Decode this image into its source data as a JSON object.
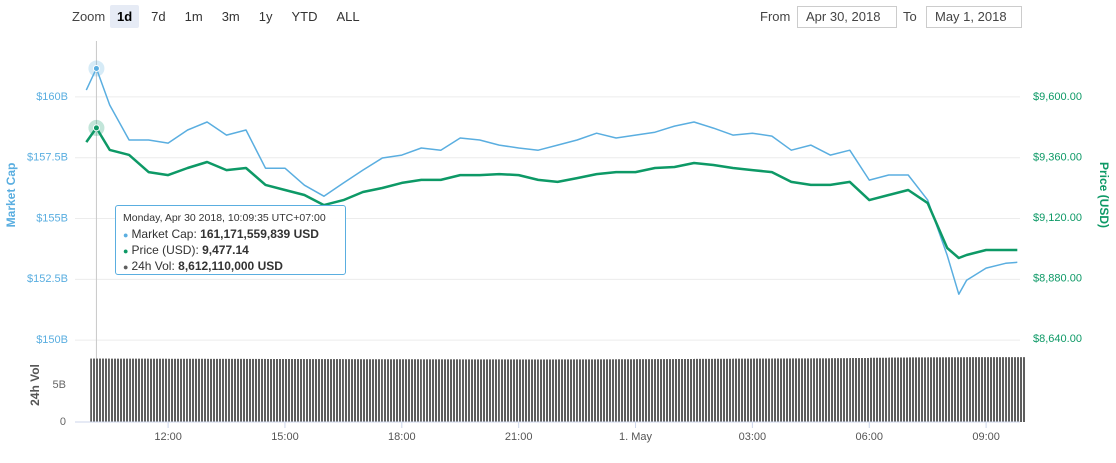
{
  "toolbar": {
    "zoom_label": "Zoom",
    "buttons": [
      "1d",
      "7d",
      "1m",
      "3m",
      "1y",
      "YTD",
      "ALL"
    ],
    "selected": "1d",
    "from_label": "From",
    "from": "Apr 30, 2018",
    "to_label": "To",
    "to": "May 1, 2018"
  },
  "tooltip": {
    "title": "Monday, Apr 30 2018, 10:09:35 UTC+07:00",
    "rows": [
      {
        "label": "Market Cap:",
        "value": "161,171,559,839 USD"
      },
      {
        "label": "Price (USD):",
        "value": "9,477.14"
      },
      {
        "label": "24h Vol:",
        "value": "8,612,110,000 USD"
      }
    ]
  },
  "chart_data": [
    {
      "type": "line",
      "ylabel": "Market Cap",
      "y2label": "Price (USD)",
      "x": [
        9.9,
        10.16,
        10.5,
        11,
        11.5,
        12,
        12.5,
        13,
        13.5,
        14,
        14.5,
        15,
        15.5,
        16,
        16.5,
        17,
        17.5,
        18,
        18.5,
        19,
        19.5,
        20,
        20.5,
        21,
        21.5,
        22,
        22.5,
        23,
        23.5,
        24,
        24.5,
        25,
        25.5,
        26,
        26.5,
        27,
        27.5,
        28,
        28.5,
        29,
        29.5,
        30,
        30.5,
        31,
        31.5,
        32,
        32.3,
        32.5,
        33,
        33.5,
        33.8
      ],
      "series": [
        {
          "name": "Market Cap",
          "color": "#5aaee0",
          "axis": "y",
          "values": [
            160280000000.0,
            161171559839,
            159670000000.0,
            158230000000.0,
            158230000000.0,
            158100000000.0,
            158640000000.0,
            158970000000.0,
            158430000000.0,
            158640000000.0,
            157070000000.0,
            157070000000.0,
            156370000000.0,
            155920000000.0,
            156460000000.0,
            156990000000.0,
            157490000000.0,
            157610000000.0,
            157900000000.0,
            157810000000.0,
            158310000000.0,
            158230000000.0,
            158020000000.0,
            157900000000.0,
            157810000000.0,
            158020000000.0,
            158230000000.0,
            158510000000.0,
            158310000000.0,
            158430000000.0,
            158550000000.0,
            158800000000.0,
            158970000000.0,
            158720000000.0,
            158430000000.0,
            158510000000.0,
            158390000000.0,
            157810000000.0,
            158020000000.0,
            157610000000.0,
            157810000000.0,
            156580000000.0,
            156790000000.0,
            156790000000.0,
            155760000000.0,
            153490000000.0,
            151890000000.0,
            152460000000.0,
            152960000000.0,
            153160000000.0,
            153200000000.0
          ]
        },
        {
          "name": "Price (USD)",
          "color": "#0d9966",
          "axis": "y2",
          "values": [
            9421,
            9477.14,
            9390,
            9370,
            9302,
            9290,
            9318,
            9342,
            9310,
            9318,
            9251,
            9231,
            9211,
            9171,
            9191,
            9223,
            9239,
            9259,
            9271,
            9271,
            9290,
            9290,
            9294,
            9290,
            9271,
            9263,
            9278,
            9294,
            9302,
            9302,
            9318,
            9322,
            9338,
            9330,
            9318,
            9310,
            9302,
            9263,
            9251,
            9251,
            9263,
            9191,
            9211,
            9231,
            9179,
            9001,
            8961,
            8973,
            8993,
            8993,
            8993
          ]
        }
      ],
      "xlim": [
        9.61,
        33.87
      ],
      "ylim": [
        149800000000,
        162300000000
      ],
      "yticks": [
        {
          "value": 150000000000,
          "label": "$150B"
        },
        {
          "value": 152500000000,
          "label": "$152.5B"
        },
        {
          "value": 155000000000,
          "label": "$155B"
        },
        {
          "value": 157500000000,
          "label": "$157.5B"
        },
        {
          "value": 160000000000,
          "label": "$160B"
        }
      ],
      "y2lim": [
        8616,
        9822
      ],
      "y2ticks": [
        {
          "value": 8640,
          "label": "$8,640.00"
        },
        {
          "value": 8880,
          "label": "$8,880.00"
        },
        {
          "value": 9120,
          "label": "$9,120.00"
        },
        {
          "value": 9360,
          "label": "$9,360.00"
        },
        {
          "value": 9600,
          "label": "$9,600.00"
        }
      ],
      "grid": true
    },
    {
      "type": "bar",
      "ylabel": "24h Vol",
      "color": "#5e5e5e",
      "x": [
        10.25,
        10.75,
        11.25,
        11.75,
        12.25,
        12.75,
        13.25,
        13.75,
        14.25,
        14.75,
        15.25,
        15.75,
        16.25,
        16.75,
        17.25,
        17.75,
        18.25,
        18.75,
        19.25,
        19.75,
        20.25,
        20.75,
        21.25,
        21.75,
        22.25,
        22.75,
        23.25,
        23.75,
        24.25,
        24.75,
        25.25,
        25.75,
        26.25,
        26.75,
        27.25,
        27.75,
        28.25,
        28.75,
        29.25,
        29.75,
        30.25,
        30.75,
        31.25,
        31.75,
        32.25,
        32.75,
        33.25,
        33.75
      ],
      "values": [
        8610000000.0,
        8600000000.0,
        8600000000.0,
        8590000000.0,
        8580000000.0,
        8580000000.0,
        8570000000.0,
        8570000000.0,
        8560000000.0,
        8550000000.0,
        8550000000.0,
        8540000000.0,
        8540000000.0,
        8530000000.0,
        8520000000.0,
        8520000000.0,
        8520000000.0,
        8510000000.0,
        8510000000.0,
        8500000000.0,
        8500000000.0,
        8500000000.0,
        8490000000.0,
        8490000000.0,
        8500000000.0,
        8500000000.0,
        8510000000.0,
        8520000000.0,
        8530000000.0,
        8540000000.0,
        8550000000.0,
        8570000000.0,
        8580000000.0,
        8600000000.0,
        8610000000.0,
        8620000000.0,
        8630000000.0,
        8640000000.0,
        8660000000.0,
        8680000000.0,
        8720000000.0,
        8750000000.0,
        8770000000.0,
        8780000000.0,
        8790000000.0,
        8800000000.0,
        8800000000.0,
        8800000000.0
      ],
      "xlim": [
        9.61,
        33.87
      ],
      "ylim": [
        0,
        9500000000
      ],
      "yticks": [
        0,
        {
          "value": 5000000000,
          "label": "5B"
        }
      ],
      "xticks": [
        {
          "value": 12,
          "label": "12:00"
        },
        {
          "value": 15,
          "label": "15:00"
        },
        {
          "value": 18,
          "label": "18:00"
        },
        {
          "value": 21,
          "label": "21:00"
        },
        {
          "value": 24,
          "label": "1. May"
        },
        {
          "value": 27,
          "label": "03:00"
        },
        {
          "value": 30,
          "label": "06:00"
        },
        {
          "value": 33,
          "label": "09:00"
        }
      ]
    }
  ]
}
